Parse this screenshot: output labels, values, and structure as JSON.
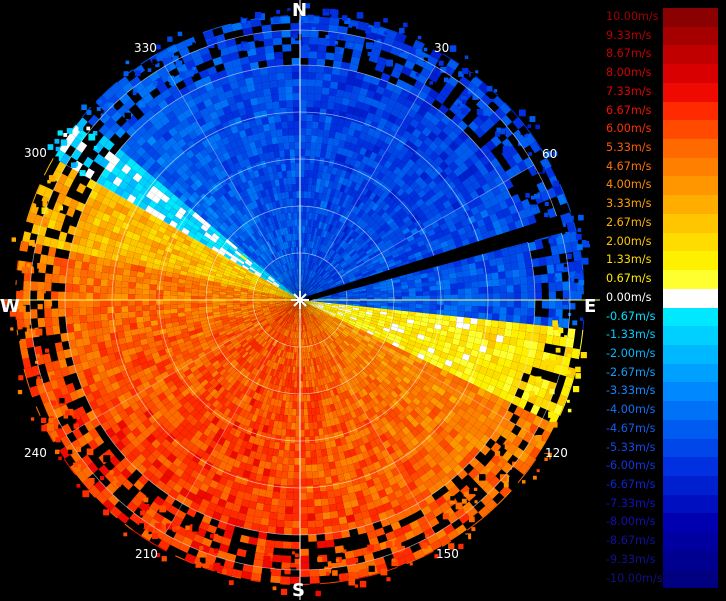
{
  "compass": {
    "n": "N",
    "e": "E",
    "s": "S",
    "w": "W"
  },
  "bearings": [
    "30",
    "60",
    "120",
    "150",
    "210",
    "240",
    "300",
    "330"
  ],
  "legend": [
    {
      "label": "10.00m/s",
      "color": "#8b0000",
      "text_color": "#a00000"
    },
    {
      "label": "9.33m/s",
      "color": "#a40000",
      "text_color": "#b80000"
    },
    {
      "label": "8.67m/s",
      "color": "#c00000",
      "text_color": "#c40000"
    },
    {
      "label": "8.00m/s",
      "color": "#d80000",
      "text_color": "#d00000"
    },
    {
      "label": "7.33m/s",
      "color": "#ee0a00",
      "text_color": "#e00000"
    },
    {
      "label": "6.67m/s",
      "color": "#ff2a00",
      "text_color": "#f01000"
    },
    {
      "label": "6.00m/s",
      "color": "#ff4a00",
      "text_color": "#ff3000"
    },
    {
      "label": "5.33m/s",
      "color": "#ff6a00",
      "text_color": "#ff5a00"
    },
    {
      "label": "4.67m/s",
      "color": "#ff8000",
      "text_color": "#ff7000"
    },
    {
      "label": "4.00m/s",
      "color": "#ff9600",
      "text_color": "#ff8a00"
    },
    {
      "label": "3.33m/s",
      "color": "#ffae00",
      "text_color": "#ffa000"
    },
    {
      "label": "2.67m/s",
      "color": "#ffc600",
      "text_color": "#ffb400"
    },
    {
      "label": "2.00m/s",
      "color": "#ffdc00",
      "text_color": "#ffc800"
    },
    {
      "label": "1.33m/s",
      "color": "#fff000",
      "text_color": "#ffdc00"
    },
    {
      "label": "0.67m/s",
      "color": "#ffff30",
      "text_color": "#ffee00"
    },
    {
      "label": "0.00m/s",
      "color": "#ffffff",
      "text_color": "#ffffff"
    },
    {
      "label": "-0.67m/s",
      "color": "#00e8ff",
      "text_color": "#00e0ff"
    },
    {
      "label": "-1.33m/s",
      "color": "#00d0ff",
      "text_color": "#00ccff"
    },
    {
      "label": "-2.00m/s",
      "color": "#00b8ff",
      "text_color": "#00b8ff"
    },
    {
      "label": "-2.67m/s",
      "color": "#00a0ff",
      "text_color": "#0aa0ff"
    },
    {
      "label": "-3.33m/s",
      "color": "#0088ff",
      "text_color": "#1088ff"
    },
    {
      "label": "-4.00m/s",
      "color": "#0072f8",
      "text_color": "#1070f8"
    },
    {
      "label": "-4.67m/s",
      "color": "#005cf0",
      "text_color": "#105ef0"
    },
    {
      "label": "-5.33m/s",
      "color": "#0046e8",
      "text_color": "#104ae8"
    },
    {
      "label": "-6.00m/s",
      "color": "#0030e0",
      "text_color": "#1036e0"
    },
    {
      "label": "-6.67m/s",
      "color": "#0020d0",
      "text_color": "#1022d0"
    },
    {
      "label": "-7.33m/s",
      "color": "#0010c0",
      "text_color": "#1012c0"
    },
    {
      "label": "-8.00m/s",
      "color": "#0000b0",
      "text_color": "#1010b0"
    },
    {
      "label": "-8.67m/s",
      "color": "#0000a0",
      "text_color": "#1010a0"
    },
    {
      "label": "-9.33m/s",
      "color": "#000090",
      "text_color": "#101090"
    },
    {
      "label": "-10.00m/s",
      "color": "#000080",
      "text_color": "#101080"
    }
  ]
}
